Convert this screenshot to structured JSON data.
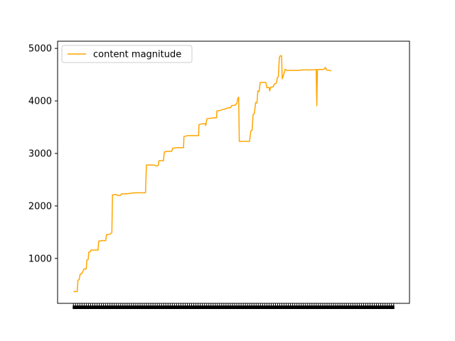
{
  "chart_data": {
    "type": "line",
    "title": "",
    "xlabel": "",
    "ylabel": "",
    "legend": {
      "placement": "top-left"
    },
    "grid": false,
    "ylim": [
      145,
      5137
    ],
    "yticks": [
      1000,
      2000,
      3000,
      4000,
      5000
    ],
    "yticklabels": [
      "1000",
      "2000",
      "3000",
      "4000",
      "5000"
    ],
    "xtick_count": 150,
    "series": [
      {
        "name": "content magnitude",
        "color": "#ffa500",
        "points": [
          [
            0.0,
            370
          ],
          [
            0.012,
            370
          ],
          [
            0.014,
            580
          ],
          [
            0.018,
            600
          ],
          [
            0.021,
            700
          ],
          [
            0.026,
            710
          ],
          [
            0.03,
            760
          ],
          [
            0.033,
            800
          ],
          [
            0.04,
            800
          ],
          [
            0.042,
            970
          ],
          [
            0.046,
            980
          ],
          [
            0.048,
            1120
          ],
          [
            0.053,
            1130
          ],
          [
            0.055,
            1160
          ],
          [
            0.067,
            1160
          ],
          [
            0.077,
            1160
          ],
          [
            0.079,
            1330
          ],
          [
            0.091,
            1340
          ],
          [
            0.101,
            1340
          ],
          [
            0.103,
            1450
          ],
          [
            0.114,
            1460
          ],
          [
            0.117,
            1480
          ],
          [
            0.12,
            1490
          ],
          [
            0.122,
            2210
          ],
          [
            0.133,
            2220
          ],
          [
            0.137,
            2200
          ],
          [
            0.147,
            2200
          ],
          [
            0.15,
            2230
          ],
          [
            0.163,
            2230
          ],
          [
            0.172,
            2235
          ],
          [
            0.177,
            2240
          ],
          [
            0.191,
            2250
          ],
          [
            0.201,
            2250
          ],
          [
            0.213,
            2250
          ],
          [
            0.225,
            2250
          ],
          [
            0.228,
            2780
          ],
          [
            0.241,
            2780
          ],
          [
            0.252,
            2780
          ],
          [
            0.258,
            2760
          ],
          [
            0.265,
            2770
          ],
          [
            0.267,
            2860
          ],
          [
            0.276,
            2860
          ],
          [
            0.281,
            2860
          ],
          [
            0.284,
            3030
          ],
          [
            0.296,
            3040
          ],
          [
            0.307,
            3040
          ],
          [
            0.31,
            3100
          ],
          [
            0.322,
            3110
          ],
          [
            0.333,
            3110
          ],
          [
            0.344,
            3110
          ],
          [
            0.345,
            3320
          ],
          [
            0.357,
            3340
          ],
          [
            0.369,
            3340
          ],
          [
            0.38,
            3340
          ],
          [
            0.391,
            3340
          ],
          [
            0.392,
            3550
          ],
          [
            0.4,
            3560
          ],
          [
            0.411,
            3570
          ],
          [
            0.413,
            3530
          ],
          [
            0.417,
            3660
          ],
          [
            0.428,
            3670
          ],
          [
            0.44,
            3680
          ],
          [
            0.447,
            3680
          ],
          [
            0.448,
            3810
          ],
          [
            0.46,
            3820
          ],
          [
            0.467,
            3840
          ],
          [
            0.471,
            3840
          ],
          [
            0.478,
            3860
          ],
          [
            0.491,
            3870
          ],
          [
            0.494,
            3910
          ],
          [
            0.505,
            3920
          ],
          [
            0.51,
            3950
          ],
          [
            0.514,
            4060
          ],
          [
            0.516,
            4070
          ],
          [
            0.518,
            3230
          ],
          [
            0.529,
            3230
          ],
          [
            0.54,
            3230
          ],
          [
            0.55,
            3230
          ],
          [
            0.554,
            3430
          ],
          [
            0.558,
            3440
          ],
          [
            0.561,
            3740
          ],
          [
            0.565,
            3760
          ],
          [
            0.569,
            3970
          ],
          [
            0.573,
            3960
          ],
          [
            0.576,
            4190
          ],
          [
            0.58,
            4180
          ],
          [
            0.583,
            4350
          ],
          [
            0.594,
            4350
          ],
          [
            0.601,
            4350
          ],
          [
            0.604,
            4250
          ],
          [
            0.611,
            4260
          ],
          [
            0.613,
            4190
          ],
          [
            0.616,
            4260
          ],
          [
            0.624,
            4270
          ],
          [
            0.627,
            4320
          ],
          [
            0.634,
            4340
          ],
          [
            0.637,
            4450
          ],
          [
            0.64,
            4460
          ],
          [
            0.643,
            4830
          ],
          [
            0.646,
            4860
          ],
          [
            0.65,
            4860
          ],
          [
            0.652,
            4420
          ],
          [
            0.655,
            4470
          ],
          [
            0.661,
            4600
          ],
          [
            0.668,
            4580
          ],
          [
            0.68,
            4580
          ],
          [
            0.692,
            4580
          ],
          [
            0.703,
            4580
          ],
          [
            0.715,
            4590
          ],
          [
            0.727,
            4590
          ],
          [
            0.739,
            4590
          ],
          [
            0.75,
            4590
          ],
          [
            0.758,
            4600
          ],
          [
            0.76,
            3910
          ],
          [
            0.762,
            4600
          ],
          [
            0.768,
            4600
          ],
          [
            0.78,
            4600
          ],
          [
            0.784,
            4610
          ],
          [
            0.787,
            4640
          ],
          [
            0.79,
            4590
          ],
          [
            0.8,
            4580
          ],
          [
            0.805,
            4570
          ]
        ]
      }
    ]
  }
}
